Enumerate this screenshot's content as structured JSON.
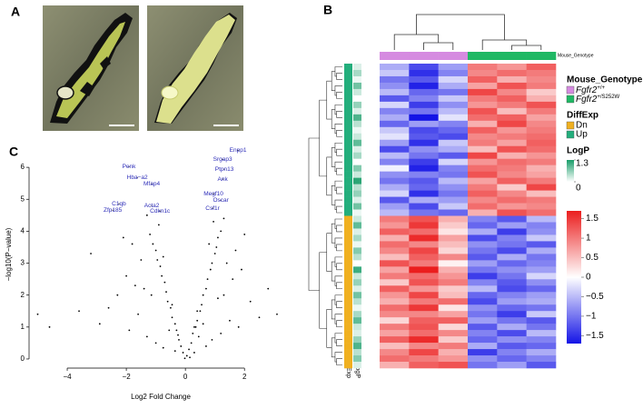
{
  "panels": {
    "a": "A",
    "b": "B",
    "c": "C"
  },
  "chart_data": [
    {
      "type": "scatter",
      "xlabel": "Log2 Fold Change",
      "ylabel": "−log10(P−value)",
      "xlim": [
        -5.2,
        3.5
      ],
      "ylim": [
        -0.2,
        6.8
      ],
      "xticks": [
        {
          "value": -4,
          "label": "−4"
        },
        {
          "value": -2,
          "label": "−2"
        },
        0,
        2
      ],
      "yticks": [
        0,
        1,
        2,
        3,
        4,
        5,
        6
      ],
      "color": "#000000",
      "annotation_color": "#2b2bb8",
      "x": [
        0.05,
        -0.08,
        0.12,
        -0.15,
        0.2,
        -0.22,
        0.25,
        -0.3,
        0.35,
        -0.35,
        0.4,
        -0.45,
        0.5,
        -0.5,
        0.55,
        -0.6,
        0.6,
        -0.65,
        0.7,
        -0.7,
        0.75,
        -0.8,
        0.85,
        -0.85,
        0.9,
        -0.95,
        1.0,
        -1.0,
        1.05,
        -1.1,
        1.1,
        -1.2,
        1.2,
        -0.9,
        0.95,
        1.3,
        -1.4,
        1.6,
        -1.7,
        1.9,
        -2.0,
        1.5,
        -1.6,
        2.2,
        -2.3,
        1.8,
        -1.9,
        2.5,
        -2.6,
        1.2,
        -1.3,
        0.9,
        -1.0,
        0.7,
        -0.75,
        1.4,
        -1.5,
        1.7,
        -1.8,
        0.6,
        -0.55,
        0.45,
        1.1,
        -1.15,
        0.3,
        -0.35,
        2.8,
        -2.9,
        -3.6,
        -4.6,
        -5.0,
        3.1,
        -3.2,
        2.0,
        -2.1,
        1.3,
        -1.3,
        0.8,
        -0.75,
        0.15,
        -0.02,
        0.4,
        -0.45,
        0.3,
        -0.25
      ],
      "y": [
        0.1,
        0.2,
        0.3,
        0.4,
        0.5,
        0.6,
        0.8,
        0.9,
        1.0,
        1.1,
        1.2,
        1.3,
        1.5,
        1.6,
        1.7,
        1.8,
        2.0,
        2.1,
        2.2,
        2.4,
        2.5,
        2.6,
        2.8,
        2.9,
        3.0,
        3.1,
        3.3,
        3.4,
        3.5,
        3.6,
        3.8,
        3.9,
        4.0,
        4.2,
        4.3,
        2.0,
        2.2,
        2.5,
        2.3,
        2.8,
        2.6,
        1.2,
        1.4,
        1.8,
        2.0,
        1.0,
        0.9,
        1.3,
        1.6,
        0.8,
        0.7,
        0.6,
        0.5,
        0.4,
        0.35,
        3.0,
        3.1,
        3.4,
        3.6,
        1.1,
        0.9,
        0.7,
        1.9,
        2.0,
        0.2,
        0.25,
        2.2,
        1.1,
        1.5,
        1.0,
        1.4,
        1.4,
        3.3,
        3.9,
        3.8,
        4.4,
        4.5,
        3.6,
        3.2,
        0.05,
        0.02,
        1.5,
        1.7,
        1.0,
        0.75
      ],
      "annotations": [
        {
          "text": "Enpp1",
          "x": 1.78,
          "y": 6.53
        },
        {
          "text": "Srgap3",
          "x": 1.26,
          "y": 6.25
        },
        {
          "text": "Ptpn13",
          "x": 1.32,
          "y": 5.94
        },
        {
          "text": "Ank",
          "x": 1.26,
          "y": 5.63
        },
        {
          "text": "Penk",
          "x": -1.91,
          "y": 6.02
        },
        {
          "text": "Hba−a2",
          "x": -1.63,
          "y": 5.68
        },
        {
          "text": "Mfap4",
          "x": -1.14,
          "y": 5.48
        },
        {
          "text": "Megf10",
          "x": 0.95,
          "y": 5.17
        },
        {
          "text": "Oscar",
          "x": 1.2,
          "y": 4.97
        },
        {
          "text": "Csf1r",
          "x": 0.92,
          "y": 4.72
        },
        {
          "text": "C1qb",
          "x": -2.25,
          "y": 4.86
        },
        {
          "text": "Zfp185",
          "x": -2.46,
          "y": 4.66
        },
        {
          "text": "Acta2",
          "x": -1.14,
          "y": 4.8
        },
        {
          "text": "Cdkn1c",
          "x": -0.86,
          "y": 4.63
        }
      ]
    },
    {
      "type": "heatmap",
      "matrix": [
        [
          -0.6,
          -1.3,
          -0.7,
          1.0,
          0.8,
          1.2
        ],
        [
          -0.4,
          -1.5,
          -0.9,
          0.9,
          1.1,
          1.0
        ],
        [
          -1.0,
          -1.2,
          -0.3,
          1.2,
          0.6,
          0.9
        ],
        [
          -0.8,
          -1.6,
          -0.6,
          0.7,
          1.3,
          1.0
        ],
        [
          -0.5,
          -1.1,
          -1.0,
          1.4,
          0.9,
          0.4
        ],
        [
          -1.2,
          -0.9,
          -0.4,
          1.0,
          1.2,
          0.6
        ],
        [
          -0.3,
          -1.4,
          -0.8,
          0.8,
          1.0,
          1.3
        ],
        [
          -0.9,
          -1.0,
          -0.5,
          1.3,
          0.5,
          1.0
        ],
        [
          -0.6,
          -1.7,
          -0.2,
          1.1,
          1.2,
          0.7
        ],
        [
          -1.1,
          -0.7,
          -0.9,
          0.6,
          1.4,
          0.9
        ],
        [
          -0.4,
          -1.3,
          -1.1,
          1.2,
          0.8,
          1.0
        ],
        [
          -0.2,
          -1.2,
          -1.3,
          0.9,
          1.0,
          1.1
        ],
        [
          -0.7,
          -1.5,
          -0.4,
          1.0,
          0.7,
          1.2
        ],
        [
          -1.3,
          -0.8,
          -0.6,
          0.5,
          1.3,
          1.1
        ],
        [
          -0.5,
          -1.0,
          -1.2,
          1.4,
          0.6,
          0.8
        ],
        [
          -0.9,
          -1.4,
          -0.3,
          0.8,
          1.1,
          1.0
        ],
        [
          -0.1,
          -1.6,
          -0.9,
          1.1,
          1.0,
          0.6
        ],
        [
          -0.8,
          -0.9,
          -1.0,
          1.3,
          0.9,
          0.7
        ],
        [
          -1.0,
          -1.2,
          -0.5,
          0.7,
          1.2,
          1.0
        ],
        [
          -0.6,
          -1.1,
          -0.8,
          1.0,
          0.4,
          1.4
        ],
        [
          -0.3,
          -1.5,
          -1.0,
          1.2,
          0.9,
          0.5
        ],
        [
          -1.2,
          -0.6,
          -0.7,
          0.9,
          1.1,
          1.0
        ],
        [
          -0.7,
          -1.3,
          -0.4,
          1.1,
          0.8,
          0.9
        ],
        [
          -0.5,
          -1.0,
          -1.1,
          0.6,
          1.3,
          1.1
        ],
        [
          1.0,
          1.3,
          0.6,
          -0.9,
          -1.2,
          -0.5
        ],
        [
          0.8,
          1.5,
          0.4,
          -1.1,
          -0.7,
          -0.9
        ],
        [
          1.2,
          1.1,
          0.2,
          -0.6,
          -1.4,
          -0.8
        ],
        [
          0.6,
          1.6,
          0.7,
          -1.3,
          -0.9,
          -0.4
        ],
        [
          1.1,
          0.9,
          0.5,
          -0.8,
          -1.0,
          -1.2
        ],
        [
          0.9,
          1.4,
          0.3,
          -1.0,
          -1.3,
          -0.6
        ],
        [
          0.5,
          1.2,
          0.9,
          -1.2,
          -0.6,
          -1.0
        ],
        [
          1.3,
          1.0,
          0.1,
          -0.7,
          -1.1,
          -0.9
        ],
        [
          0.7,
          1.7,
          0.6,
          -1.0,
          -0.8,
          -0.7
        ],
        [
          1.0,
          1.1,
          0.8,
          -1.4,
          -1.0,
          -0.3
        ],
        [
          0.4,
          1.3,
          1.0,
          -0.9,
          -1.2,
          -0.8
        ],
        [
          1.2,
          0.8,
          0.4,
          -0.5,
          -1.3,
          -1.1
        ],
        [
          0.8,
          1.4,
          0.5,
          -1.1,
          -0.9,
          -0.7
        ],
        [
          0.6,
          1.0,
          1.1,
          -1.3,
          -0.7,
          -0.6
        ],
        [
          1.1,
          1.5,
          0.2,
          -0.8,
          -1.1,
          -1.0
        ],
        [
          0.9,
          0.9,
          0.7,
          -1.0,
          -1.4,
          -0.4
        ],
        [
          0.3,
          1.2,
          1.2,
          -0.7,
          -1.0,
          -1.2
        ],
        [
          1.0,
          1.3,
          0.3,
          -1.2,
          -0.6,
          -1.0
        ],
        [
          0.7,
          1.1,
          0.9,
          -0.9,
          -1.3,
          -0.5
        ],
        [
          1.2,
          1.6,
          0.4,
          -1.1,
          -0.8,
          -0.9
        ],
        [
          0.5,
          0.9,
          1.0,
          -0.6,
          -1.2,
          -1.1
        ],
        [
          0.9,
          1.4,
          0.6,
          -1.4,
          -0.9,
          -0.6
        ],
        [
          1.1,
          1.0,
          0.8,
          -0.8,
          -1.1,
          -0.9
        ],
        [
          0.6,
          1.2,
          1.3,
          -1.0,
          -0.7,
          -1.2
        ]
      ],
      "column_genotype": [
        0,
        0,
        0,
        1,
        1,
        1
      ],
      "row_diffexp": [
        1,
        1,
        1,
        1,
        1,
        1,
        1,
        1,
        1,
        1,
        1,
        1,
        1,
        1,
        1,
        1,
        1,
        1,
        1,
        1,
        1,
        1,
        1,
        1,
        0,
        0,
        0,
        0,
        0,
        0,
        0,
        0,
        0,
        0,
        0,
        0,
        0,
        0,
        0,
        0,
        0,
        0,
        0,
        0,
        0,
        0,
        0,
        0
      ],
      "row_logp": [
        0.2,
        0.5,
        0.1,
        0.8,
        0.3,
        0.0,
        0.6,
        0.2,
        1.0,
        0.4,
        0.1,
        0.3,
        0.9,
        0.2,
        0.5,
        0.0,
        0.7,
        0.3,
        1.2,
        0.4,
        0.6,
        0.2,
        0.8,
        0.1,
        0.3,
        0.9,
        0.2,
        0.5,
        0.1,
        0.7,
        0.4,
        0.0,
        1.1,
        0.3,
        0.6,
        0.2,
        0.8,
        0.4,
        0.1,
        0.5,
        0.9,
        0.3,
        0.2,
        0.6,
        1.0,
        0.4,
        0.7,
        0.2
      ],
      "genotype_legend": {
        "title": "Mouse_Genotype",
        "items": [
          {
            "gene": "Fgfr2",
            "allele": "+/+",
            "color": "#d58be0"
          },
          {
            "gene": "Fgfr2",
            "allele": "+/S252W",
            "color": "#1fb864"
          }
        ]
      },
      "diffexp_legend": {
        "title": "DiffExp",
        "items": [
          {
            "name": "Dn",
            "color": "#f0b020"
          },
          {
            "name": "Up",
            "color": "#23ae7c"
          }
        ]
      },
      "logp_legend": {
        "title": "LogP",
        "lim": [
          0,
          1.3
        ],
        "ticks": [
          0,
          1.3
        ],
        "color": "#1a9e6a"
      },
      "clim": [
        -1.7,
        1.7
      ],
      "cticks": [
        1.5,
        1,
        0.5,
        0,
        {
          "value": -0.5,
          "label": "−0.5"
        },
        {
          "value": -1,
          "label": "−1"
        },
        {
          "value": -1.5,
          "label": "−1.5"
        }
      ],
      "low_color": "#1414e6",
      "mid_color": "#ffffff",
      "high_color": "#eb1e1e"
    }
  ]
}
